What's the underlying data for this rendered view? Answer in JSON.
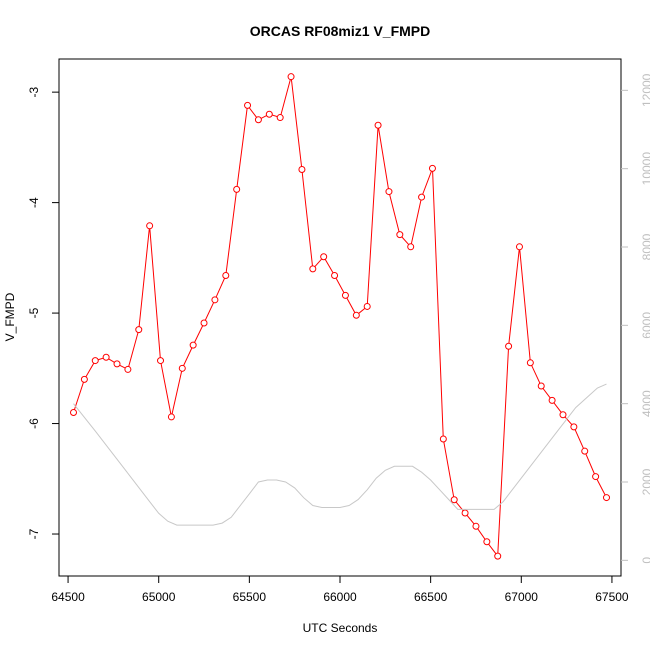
{
  "chart_data": {
    "type": "line",
    "title": "ORCAS RF08miz1 V_FMPD",
    "xlabel": "UTC Seconds",
    "ylabel": "V_FMPD",
    "xlim": [
      64450,
      67550
    ],
    "ylim": [
      -7.38,
      -2.7
    ],
    "ylim_right": [
      -400,
      12800
    ],
    "x_ticks": [
      64500,
      65000,
      65500,
      66000,
      66500,
      67000,
      67500
    ],
    "y_ticks": [
      -7,
      -6,
      -5,
      -4,
      -3
    ],
    "y_ticks_right": [
      0,
      2000,
      4000,
      6000,
      8000,
      10000,
      12000
    ],
    "grid": false,
    "series": [
      {
        "axis": "left",
        "color": "#ff0000",
        "marker": "open-circle",
        "x": [
          64530,
          64590,
          64650,
          64710,
          64770,
          64830,
          64890,
          64950,
          65010,
          65070,
          65130,
          65190,
          65250,
          65310,
          65370,
          65430,
          65490,
          65550,
          65610,
          65670,
          65730,
          65790,
          65850,
          65910,
          65970,
          66030,
          66090,
          66150,
          66210,
          66270,
          66330,
          66390,
          66450,
          66510,
          66570,
          66630,
          66690,
          66750,
          66810,
          66870,
          66930,
          66990,
          67050,
          67110,
          67170,
          67230,
          67290,
          67350,
          67410,
          67470
        ],
        "y": [
          -5.9,
          -5.6,
          -5.43,
          -5.4,
          -5.46,
          -5.51,
          -5.15,
          -4.21,
          -5.43,
          -5.94,
          -5.5,
          -5.29,
          -5.09,
          -4.88,
          -4.66,
          -3.88,
          -3.12,
          -3.25,
          -3.2,
          -3.23,
          -2.86,
          -3.7,
          -4.6,
          -4.49,
          -4.66,
          -4.84,
          -5.02,
          -4.94,
          -3.3,
          -3.9,
          -4.29,
          -4.4,
          -3.95,
          -3.69,
          -6.14,
          -6.69,
          -6.81,
          -6.93,
          -7.07,
          -7.2,
          -5.3,
          -4.4,
          -5.45,
          -5.66,
          -5.79,
          -5.92,
          -6.03,
          -6.25,
          -6.48,
          -6.67
        ]
      },
      {
        "axis": "right",
        "color": "#c8c8c8",
        "marker": "none",
        "x": [
          64530,
          64650,
          64800,
          64950,
          65000,
          65050,
          65100,
          65200,
          65300,
          65350,
          65400,
          65450,
          65500,
          65550,
          65600,
          65650,
          65700,
          65750,
          65800,
          65850,
          65900,
          66000,
          66050,
          66100,
          66150,
          66200,
          66250,
          66300,
          66350,
          66400,
          66450,
          66500,
          66550,
          66600,
          66650,
          66750,
          66850,
          66900,
          67000,
          67100,
          67200,
          67300,
          67420,
          67470
        ],
        "y": [
          4000,
          3300,
          2400,
          1500,
          1200,
          1000,
          900,
          900,
          900,
          950,
          1100,
          1400,
          1700,
          2000,
          2050,
          2050,
          2000,
          1850,
          1600,
          1400,
          1350,
          1350,
          1400,
          1550,
          1800,
          2100,
          2300,
          2400,
          2400,
          2400,
          2250,
          2050,
          1800,
          1550,
          1300,
          1300,
          1300,
          1500,
          2100,
          2700,
          3300,
          3900,
          4400,
          4500
        ]
      }
    ]
  }
}
